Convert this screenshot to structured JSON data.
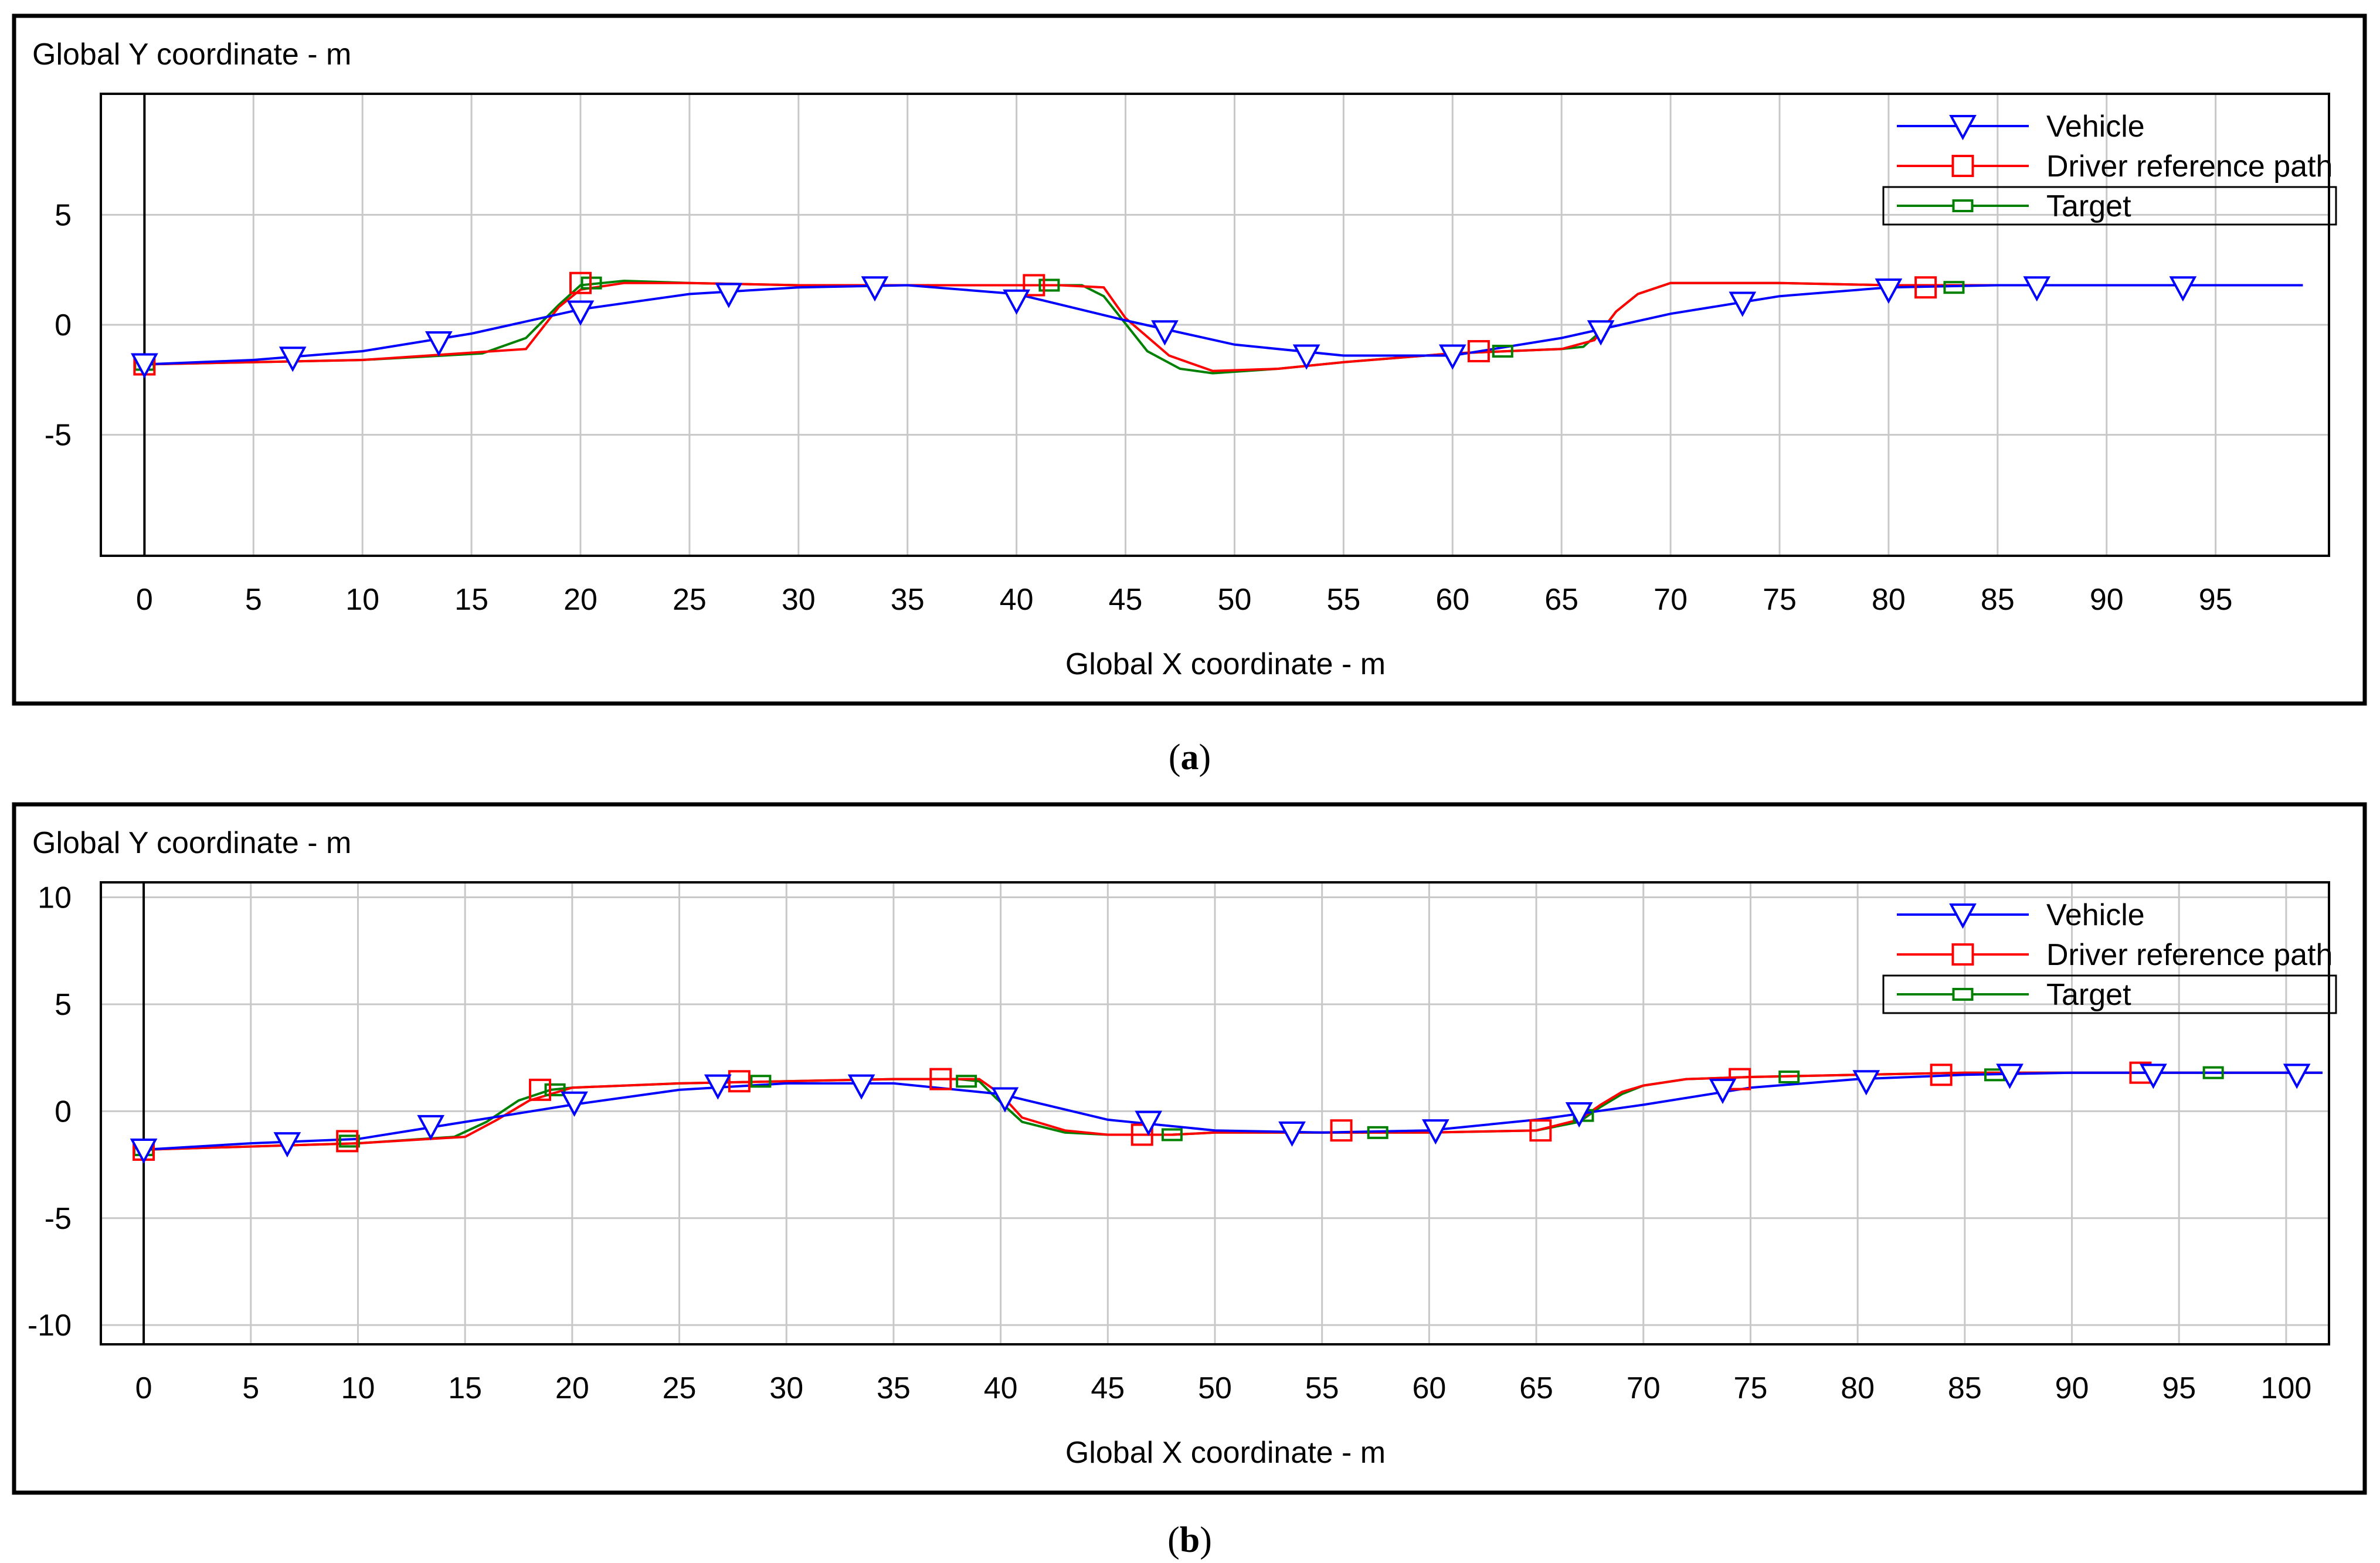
{
  "colors": {
    "vehicle": "#0000ff",
    "driver": "#ff0000",
    "target": "#008000",
    "grid": "#c8c8c8",
    "frame": "#000000"
  },
  "legend": {
    "vehicle": "Vehicle",
    "driver": "Driver reference path",
    "target": "Target"
  },
  "chart_data": [
    {
      "type": "line",
      "panel_label": "(a)",
      "caption_letter": "a",
      "ylabel": "Global Y coordinate - m",
      "xlabel": "Global X coordinate - m",
      "xlim": [
        -2,
        100.2
      ],
      "ylim": [
        -10.5,
        10.5
      ],
      "xticks": [
        0,
        5,
        10,
        15,
        20,
        25,
        30,
        35,
        40,
        45,
        50,
        55,
        60,
        65,
        70,
        75,
        80,
        85,
        90,
        95
      ],
      "yticks": [
        5,
        0,
        -5
      ],
      "legend_position": "top-right",
      "grid": true,
      "series": [
        {
          "name": "Vehicle",
          "key": "vehicle",
          "marker": "triangle-down",
          "x": [
            0,
            5,
            10,
            15,
            20,
            25,
            30,
            35,
            40,
            45,
            50,
            55,
            60,
            65,
            70,
            75,
            80,
            85,
            90,
            95,
            99
          ],
          "y": [
            -1.8,
            -1.6,
            -1.2,
            -0.4,
            0.7,
            1.4,
            1.7,
            1.8,
            1.4,
            0.2,
            -0.9,
            -1.4,
            -1.4,
            -0.6,
            0.5,
            1.3,
            1.7,
            1.8,
            1.8,
            1.8,
            1.8
          ],
          "marker_x": [
            0,
            6.8,
            13.5,
            20,
            26.8,
            33.5,
            40,
            46.8,
            53.3,
            60,
            66.8,
            73.3,
            80,
            86.8,
            93.5
          ],
          "marker_y": [
            -1.8,
            -1.5,
            -0.8,
            0.6,
            1.4,
            1.7,
            1.1,
            -0.3,
            -1.4,
            -1.4,
            -0.3,
            1.0,
            1.6,
            1.7,
            1.7
          ]
        },
        {
          "name": "Driver reference path",
          "key": "driver",
          "marker": "square",
          "x": [
            0,
            10,
            17.5,
            19,
            20,
            22,
            25,
            30,
            35,
            40,
            41,
            42,
            44,
            45,
            47,
            49,
            52,
            55,
            60,
            65,
            66.5,
            67.5,
            68.5,
            70,
            75,
            80,
            85,
            90,
            95,
            99
          ],
          "y": [
            -1.8,
            -1.6,
            -1.1,
            0.8,
            1.6,
            1.9,
            1.9,
            1.8,
            1.8,
            1.8,
            1.8,
            1.8,
            1.7,
            0.3,
            -1.4,
            -2.1,
            -2.0,
            -1.7,
            -1.3,
            -1.1,
            -0.7,
            0.6,
            1.4,
            1.9,
            1.9,
            1.8,
            1.8,
            1.8,
            1.8,
            1.8
          ],
          "marker_x": [
            0,
            20,
            40.8,
            61.2,
            81.7
          ],
          "marker_y": [
            -1.8,
            1.9,
            1.8,
            -1.2,
            1.7
          ]
        },
        {
          "name": "Target",
          "key": "target",
          "marker": "small-square",
          "x": [
            0,
            10,
            15.5,
            17.5,
            19,
            20,
            22,
            25,
            30,
            35,
            40,
            43,
            44,
            44.8,
            46,
            47.5,
            49,
            52,
            55,
            60,
            65,
            66,
            66.8,
            67.5,
            68.5,
            70,
            75,
            80,
            85,
            90,
            95,
            99
          ],
          "y": [
            -1.8,
            -1.6,
            -1.3,
            -0.6,
            0.9,
            1.8,
            2.0,
            1.9,
            1.8,
            1.8,
            1.8,
            1.8,
            1.3,
            0.3,
            -1.2,
            -2.0,
            -2.2,
            -2.0,
            -1.7,
            -1.3,
            -1.1,
            -1.0,
            -0.3,
            0.6,
            1.4,
            1.9,
            1.9,
            1.8,
            1.8,
            1.8,
            1.8,
            1.8
          ],
          "marker_x": [
            0,
            20.5,
            41.5,
            62.3,
            83
          ],
          "marker_y": [
            -1.8,
            1.9,
            1.8,
            -1.2,
            1.7
          ]
        }
      ]
    },
    {
      "type": "line",
      "panel_label": "(b)",
      "caption_letter": "b",
      "ylabel": "Global Y coordinate - m",
      "xlabel": "Global X coordinate - m",
      "xlim": [
        -2,
        102
      ],
      "ylim": [
        -10.9,
        10.7
      ],
      "xticks": [
        0,
        5,
        10,
        15,
        20,
        25,
        30,
        35,
        40,
        45,
        50,
        55,
        60,
        65,
        70,
        75,
        80,
        85,
        90,
        95,
        100
      ],
      "yticks": [
        10,
        5,
        0,
        -5,
        -10
      ],
      "legend_position": "top-right",
      "grid": true,
      "series": [
        {
          "name": "Vehicle",
          "key": "vehicle",
          "marker": "triangle-down",
          "x": [
            0,
            5,
            10,
            15,
            20,
            25,
            30,
            35,
            40,
            45,
            50,
            55,
            60,
            65,
            70,
            75,
            80,
            85,
            90,
            95,
            100,
            101.7
          ],
          "y": [
            -1.8,
            -1.5,
            -1.3,
            -0.5,
            0.3,
            1.0,
            1.3,
            1.3,
            0.8,
            -0.4,
            -0.9,
            -1.0,
            -0.9,
            -0.4,
            0.3,
            1.1,
            1.5,
            1.7,
            1.8,
            1.8,
            1.8,
            1.8
          ],
          "marker_x": [
            0,
            6.7,
            13.4,
            20.1,
            26.8,
            33.5,
            40.2,
            46.9,
            53.6,
            60.3,
            67,
            73.7,
            80.4,
            87.1,
            93.8,
            100.5
          ],
          "marker_y": [
            -1.8,
            -1.5,
            -0.7,
            0.4,
            1.2,
            1.2,
            0.6,
            -0.5,
            -1.0,
            -0.9,
            -0.1,
            1.0,
            1.4,
            1.7,
            1.7,
            1.7
          ]
        },
        {
          "name": "Driver reference path",
          "key": "driver",
          "marker": "square",
          "x": [
            0,
            10,
            15,
            16.5,
            18,
            20,
            25,
            30,
            35,
            38,
            39,
            40,
            41,
            43,
            45,
            48,
            50,
            55,
            60,
            65,
            67,
            68,
            69,
            70,
            72,
            75,
            80,
            85,
            90,
            95,
            100,
            101.7
          ],
          "y": [
            -1.8,
            -1.5,
            -1.2,
            -0.4,
            0.5,
            1.1,
            1.3,
            1.4,
            1.5,
            1.5,
            1.5,
            0.8,
            -0.3,
            -0.9,
            -1.1,
            -1.1,
            -1.0,
            -1.0,
            -1.0,
            -0.9,
            -0.4,
            0.3,
            0.9,
            1.2,
            1.5,
            1.6,
            1.7,
            1.8,
            1.8,
            1.8,
            1.8,
            1.8
          ],
          "marker_x": [
            0,
            9.5,
            18.5,
            27.8,
            37.2,
            46.6,
            55.9,
            65.2,
            74.5,
            83.9,
            93.2
          ],
          "marker_y": [
            -1.8,
            -1.4,
            1.0,
            1.4,
            1.5,
            -1.1,
            -0.9,
            -0.9,
            1.5,
            1.7,
            1.8
          ]
        },
        {
          "name": "Target",
          "key": "target",
          "marker": "small-square",
          "x": [
            0,
            10,
            14.5,
            16,
            17.5,
            19,
            20,
            25,
            30,
            35,
            38,
            39,
            39.8,
            41,
            43,
            45,
            48,
            50,
            55,
            60,
            65,
            67,
            68,
            69,
            70,
            72,
            75,
            80,
            85,
            90,
            95,
            100,
            101.7
          ],
          "y": [
            -1.8,
            -1.5,
            -1.2,
            -0.5,
            0.5,
            1.0,
            1.1,
            1.3,
            1.4,
            1.5,
            1.5,
            1.4,
            0.6,
            -0.5,
            -1.0,
            -1.1,
            -1.1,
            -1.0,
            -1.0,
            -1.0,
            -0.9,
            -0.5,
            0.2,
            0.8,
            1.2,
            1.5,
            1.6,
            1.7,
            1.8,
            1.8,
            1.8,
            1.8,
            1.8
          ],
          "marker_x": [
            0,
            9.6,
            19.2,
            28.8,
            38.4,
            48,
            57.6,
            67.2,
            76.8,
            86.4,
            96.6
          ],
          "marker_y": [
            -1.8,
            -1.4,
            1.0,
            1.4,
            1.4,
            -1.1,
            -1.0,
            -0.2,
            1.6,
            1.7,
            1.8
          ]
        }
      ]
    }
  ]
}
